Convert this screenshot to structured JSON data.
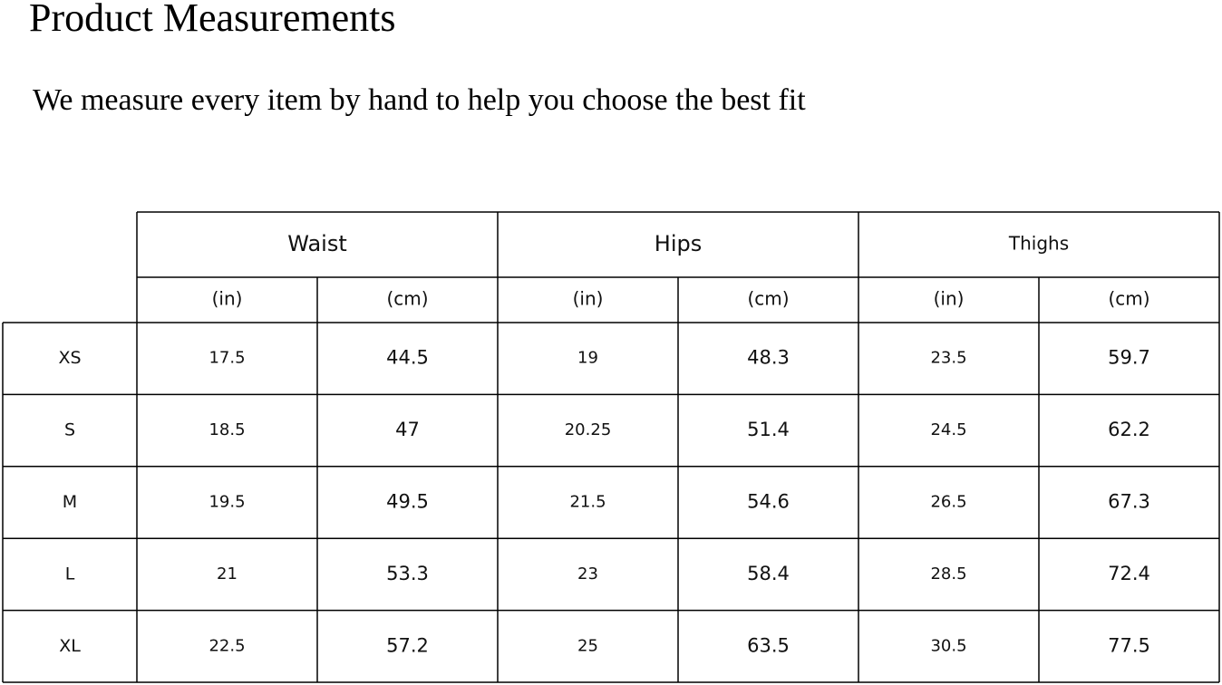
{
  "header": {
    "title": "Product Measurements",
    "subtitle": "We measure every item by hand to help you choose the best fit"
  },
  "table": {
    "groups": [
      {
        "label": "Waist",
        "units": [
          "(in)",
          "(cm)"
        ]
      },
      {
        "label": "Hips",
        "units": [
          "(in)",
          "(cm)"
        ]
      },
      {
        "label": "Thighs",
        "units": [
          "(in)",
          "(cm)"
        ]
      }
    ],
    "rows": [
      [
        "XS",
        "17.5",
        "44.5",
        "19",
        "48.3",
        "23.5",
        "59.7"
      ],
      [
        "S",
        "18.5",
        "47",
        "20.25",
        "51.4",
        "24.5",
        "62.2"
      ],
      [
        "M",
        "19.5",
        "49.5",
        "21.5",
        "54.6",
        "26.5",
        "67.3"
      ],
      [
        "L",
        "21",
        "53.3",
        "23",
        "58.4",
        "28.5",
        "72.4"
      ],
      [
        "XL",
        "22.5",
        "57.2",
        "25",
        "63.5",
        "30.5",
        "77.5"
      ]
    ]
  }
}
